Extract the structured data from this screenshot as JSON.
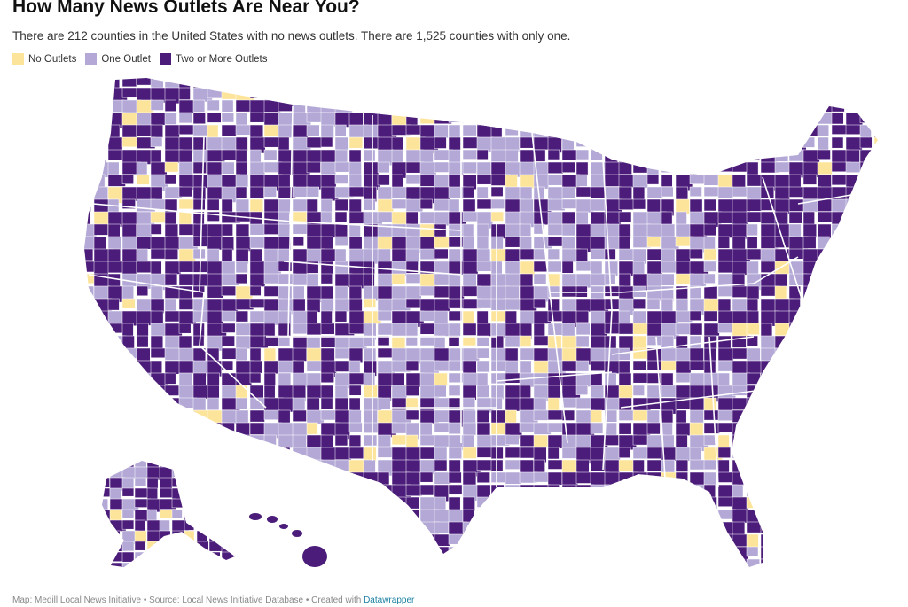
{
  "title": "How Many News Outlets Are Near You?",
  "subtitle": "There are 212 counties in the United States with no news outlets. There are 1,525 counties with only one.",
  "legend": {
    "items": [
      {
        "label": "No Outlets",
        "color": "#fde49b"
      },
      {
        "label": "One Outlet",
        "color": "#b3a8d6"
      },
      {
        "label": "Two or More Outlets",
        "color": "#4b1c7a"
      }
    ]
  },
  "colors": {
    "none": "#fde49b",
    "one": "#b3a8d6",
    "two_plus": "#4b1c7a",
    "border": "#ffffff"
  },
  "map": {
    "type": "choropleth",
    "region": "United States counties",
    "categories": [
      "No Outlets",
      "One Outlet",
      "Two or More Outlets"
    ]
  },
  "footer": {
    "credit": "Map: Medill Local News Initiative • Source: Local News Initiative Database • Created with ",
    "link": "Datawrapper"
  }
}
